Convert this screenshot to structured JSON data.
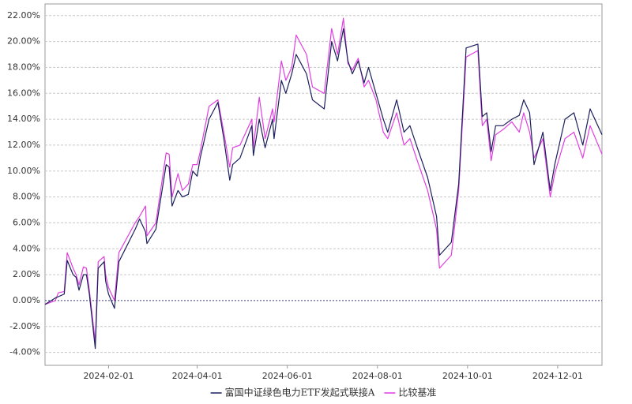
{
  "chart_data": {
    "type": "line",
    "x": [
      "2023-12-20",
      "2023-12-27",
      "2023-12-29",
      "2024-01-02",
      "2024-01-04",
      "2024-01-08",
      "2024-01-10",
      "2024-01-12",
      "2024-01-15",
      "2024-01-17",
      "2024-01-19",
      "2024-01-23",
      "2024-01-25",
      "2024-01-29",
      "2024-01-30",
      "2024-02-01",
      "2024-02-05",
      "2024-02-08",
      "2024-02-19",
      "2024-02-22",
      "2024-02-26",
      "2024-02-27",
      "2024-03-04",
      "2024-03-11",
      "2024-03-13",
      "2024-03-15",
      "2024-03-19",
      "2024-03-22",
      "2024-03-26",
      "2024-03-29",
      "2024-04-01",
      "2024-04-03",
      "2024-04-09",
      "2024-04-15",
      "2024-04-19",
      "2024-04-23",
      "2024-04-25",
      "2024-04-30",
      "2024-05-08",
      "2024-05-09",
      "2024-05-13",
      "2024-05-17",
      "2024-05-22",
      "2024-05-23",
      "2024-05-28",
      "2024-05-31",
      "2024-06-04",
      "2024-06-07",
      "2024-06-14",
      "2024-06-18",
      "2024-06-26",
      "2024-07-01",
      "2024-07-05",
      "2024-07-09",
      "2024-07-12",
      "2024-07-15",
      "2024-07-19",
      "2024-07-23",
      "2024-07-26",
      "2024-07-31",
      "2024-08-05",
      "2024-08-08",
      "2024-08-14",
      "2024-08-19",
      "2024-08-23",
      "2024-08-28",
      "2024-09-04",
      "2024-09-10",
      "2024-09-12",
      "2024-09-20",
      "2024-09-25",
      "2024-09-30",
      "2024-10-08",
      "2024-10-11",
      "2024-10-14",
      "2024-10-17",
      "2024-10-20",
      "2024-10-25",
      "2024-10-31",
      "2024-11-05",
      "2024-11-08",
      "2024-11-12",
      "2024-11-15",
      "2024-11-21",
      "2024-11-26",
      "2024-11-29",
      "2024-12-06",
      "2024-12-12",
      "2024-12-18",
      "2024-12-23",
      "2024-12-31"
    ],
    "series": [
      {
        "name": "富国中证绿色电力ETF发起式联接A",
        "color": "#1b1f5c",
        "values": [
          -0.3,
          0.2,
          0.3,
          0.5,
          3.1,
          2.0,
          1.8,
          0.8,
          2.0,
          2.0,
          0.5,
          -3.7,
          2.5,
          3.0,
          1.5,
          0.5,
          -0.6,
          3.0,
          5.5,
          6.3,
          5.3,
          4.4,
          5.5,
          10.5,
          10.3,
          7.3,
          8.5,
          8.0,
          8.2,
          10.0,
          9.6,
          11.0,
          14.0,
          15.3,
          12.5,
          9.3,
          10.5,
          11.0,
          13.5,
          11.2,
          14.0,
          11.8,
          14.0,
          12.5,
          17.0,
          16.0,
          17.5,
          19.0,
          17.5,
          15.5,
          14.8,
          20.0,
          18.5,
          21.0,
          18.5,
          17.5,
          18.5,
          16.8,
          18.0,
          16.0,
          14.0,
          13.0,
          15.5,
          13.0,
          13.5,
          11.8,
          9.5,
          6.5,
          3.5,
          4.5,
          9.0,
          19.5,
          19.8,
          14.2,
          14.5,
          11.5,
          13.5,
          13.5,
          14.0,
          14.3,
          15.5,
          14.5,
          10.5,
          13.0,
          8.5,
          10.5,
          14.0,
          14.5,
          12.0,
          14.8,
          12.8
        ]
      },
      {
        "name": "比较基准",
        "color": "#e03ee0",
        "values": [
          -0.3,
          0.0,
          0.6,
          0.7,
          3.7,
          2.5,
          2.0,
          1.2,
          2.6,
          2.5,
          0.8,
          -3.2,
          3.0,
          3.4,
          2.0,
          1.0,
          0.0,
          3.7,
          6.0,
          6.5,
          7.3,
          5.0,
          6.0,
          11.4,
          11.3,
          8.0,
          9.8,
          8.5,
          9.0,
          10.5,
          10.5,
          11.5,
          15.0,
          15.5,
          13.0,
          10.3,
          11.8,
          12.0,
          14.0,
          11.8,
          15.7,
          12.5,
          14.8,
          13.8,
          18.5,
          17.0,
          18.0,
          20.5,
          19.0,
          16.5,
          16.0,
          21.0,
          19.0,
          21.8,
          18.3,
          17.8,
          18.7,
          16.5,
          17.0,
          15.5,
          13.0,
          12.5,
          14.5,
          12.0,
          12.5,
          10.8,
          8.5,
          5.5,
          2.5,
          3.5,
          8.5,
          18.8,
          19.3,
          13.5,
          14.0,
          10.8,
          12.8,
          13.2,
          13.8,
          13.0,
          14.5,
          13.0,
          11.0,
          12.5,
          8.0,
          9.8,
          12.5,
          13.0,
          11.0,
          13.5,
          11.3
        ]
      }
    ],
    "xlim": [
      "2023-12-20",
      "2024-12-31"
    ],
    "xticks": [
      "2024-02-01",
      "2024-04-01",
      "2024-06-01",
      "2024-08-01",
      "2024-10-01",
      "2024-12-01"
    ],
    "ylim": [
      -5,
      22.9
    ],
    "yticks": [
      {
        "value": -4,
        "label": "-4.00%"
      },
      {
        "value": -2,
        "label": "-2.00%"
      },
      {
        "value": 0,
        "label": "0.00%"
      },
      {
        "value": 2,
        "label": "2.00%"
      },
      {
        "value": 4,
        "label": "4.00%"
      },
      {
        "value": 6,
        "label": "6.00%"
      },
      {
        "value": 8,
        "label": "8.00%"
      },
      {
        "value": 10,
        "label": "10.00%"
      },
      {
        "value": 12,
        "label": "12.00%"
      },
      {
        "value": 14,
        "label": "14.00%"
      },
      {
        "value": 16,
        "label": "16.00%"
      },
      {
        "value": 18,
        "label": "18.00%"
      },
      {
        "value": 20,
        "label": "20.00%"
      },
      {
        "value": 22,
        "label": "22.00%"
      }
    ],
    "grid": true,
    "legend": "bottom"
  }
}
